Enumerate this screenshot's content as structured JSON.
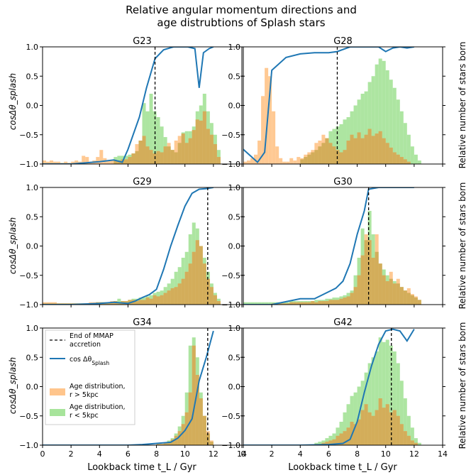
{
  "figure": {
    "title_line1": "Relative angular momentum directions and",
    "title_line2": "age distrubtions of Splash stars",
    "xlabel": "Lookback time t_L / Gyr",
    "ylabel_left": "cosΔθ_splash",
    "ylabel_right": "Relative number of stars born"
  },
  "colors": {
    "line": "#1f77b4",
    "orange": "#ffbb78",
    "green": "#98df8a",
    "overlap": "#c9a64d"
  },
  "legend": {
    "mmap": "End of MMAP accretion",
    "cos": "cos Δθ_Splash",
    "outer": "Age distribution, r > 5kpc",
    "inner": "Age distribution, r < 5kpc"
  },
  "chart_data": [
    {
      "type": "line+histogram",
      "title": "G23",
      "xlim": [
        0,
        14
      ],
      "ylim": [
        -1.0,
        1.0
      ],
      "xticks": [
        0,
        2,
        4,
        6,
        8,
        10,
        12,
        14
      ],
      "yticks": [
        -1.0,
        -0.5,
        0.0,
        0.5,
        1.0
      ],
      "mmap_end": 7.9,
      "cos_x": [
        0,
        2,
        4,
        5,
        5.6,
        6,
        6.8,
        7.3,
        7.9,
        8.5,
        9.2,
        10.2,
        10.7,
        11.0,
        11.3,
        11.7,
        12.0
      ],
      "cos_y": [
        -1.0,
        -1.0,
        -0.96,
        -0.93,
        -0.97,
        -0.75,
        -0.2,
        0.3,
        0.8,
        0.95,
        1.0,
        1.0,
        0.97,
        0.3,
        0.9,
        0.97,
        1.0
      ],
      "hist_outer": [
        0.03,
        0.02,
        0.03,
        0.02,
        0.02,
        0.01,
        0.02,
        0.01,
        0.02,
        0.03,
        0.02,
        0.07,
        0.06,
        0.02,
        0.03,
        0.06,
        0.12,
        0.05,
        0.03,
        0.03,
        0.03,
        0.03,
        0.04,
        0.04,
        0.06,
        0.09,
        0.17,
        0.2,
        0.24,
        0.15,
        0.12,
        0.09,
        0.11,
        0.1,
        0.15,
        0.18,
        0.12,
        0.2,
        0.24,
        0.26,
        0.18,
        0.22,
        0.29,
        0.38,
        0.37,
        0.45,
        0.3,
        0.25,
        0.17,
        0.06,
        0,
        0
      ],
      "hist_inner": [
        0,
        0,
        0,
        0,
        0,
        0,
        0,
        0,
        0,
        0,
        0,
        0,
        0,
        0,
        0,
        0,
        0,
        0,
        0,
        0,
        0.06,
        0.07,
        0.07,
        0.07,
        0.08,
        0.09,
        0.11,
        0.2,
        0.52,
        0.45,
        0.6,
        0.45,
        0.4,
        0.32,
        0.23,
        0.15,
        0.12,
        0.1,
        0.18,
        0.27,
        0.28,
        0.28,
        0.32,
        0.45,
        0.5,
        0.6,
        0.45,
        0.35,
        0.25,
        0.12,
        0,
        0
      ]
    },
    {
      "type": "line+histogram",
      "title": "G28",
      "xlim": [
        0,
        14
      ],
      "ylim": [
        -1.0,
        1.0
      ],
      "xticks": [
        0,
        2,
        4,
        6,
        8,
        10,
        12,
        14
      ],
      "yticks": [
        -1.0,
        -0.5,
        0.0,
        0.5,
        1.0
      ],
      "mmap_end": 6.6,
      "cos_x": [
        0,
        1.0,
        1.5,
        2.0,
        3.0,
        4.0,
        5.0,
        6.0,
        6.6,
        7.5,
        8.5,
        9.5,
        10.0,
        10.5,
        11.0,
        11.5,
        12.0
      ],
      "cos_y": [
        -0.75,
        -0.97,
        -0.8,
        0.6,
        0.82,
        0.88,
        0.9,
        0.9,
        0.92,
        1.0,
        1.0,
        1.0,
        0.92,
        0.98,
        1.0,
        0.98,
        1.0
      ],
      "hist_outer": [
        0.02,
        0.03,
        0.05,
        0.08,
        0.2,
        0.58,
        0.82,
        0.75,
        0.45,
        0.15,
        0.05,
        0.02,
        0.02,
        0.05,
        0.03,
        0.06,
        0.05,
        0.08,
        0.1,
        0.12,
        0.18,
        0.2,
        0.25,
        0.22,
        0.18,
        0.15,
        0.12,
        0.1,
        0.12,
        0.2,
        0.25,
        0.22,
        0.27,
        0.22,
        0.25,
        0.3,
        0.24,
        0.26,
        0.28,
        0.22,
        0.18,
        0.14,
        0.1,
        0.08,
        0.06,
        0.04,
        0.02,
        0,
        0,
        0,
        0,
        0
      ],
      "hist_inner": [
        0,
        0,
        0,
        0,
        0,
        0,
        0,
        0,
        0,
        0,
        0,
        0,
        0,
        0,
        0,
        0,
        0.04,
        0.06,
        0.08,
        0.1,
        0.12,
        0.15,
        0.18,
        0.22,
        0.28,
        0.3,
        0.32,
        0.34,
        0.38,
        0.4,
        0.45,
        0.5,
        0.55,
        0.6,
        0.62,
        0.7,
        0.75,
        0.85,
        0.9,
        0.88,
        0.8,
        0.72,
        0.65,
        0.55,
        0.45,
        0.35,
        0.25,
        0.15,
        0.08,
        0.03,
        0,
        0
      ]
    },
    {
      "type": "line+histogram",
      "title": "G29",
      "xlim": [
        0,
        14
      ],
      "ylim": [
        -1.0,
        1.0
      ],
      "xticks": [
        0,
        2,
        4,
        6,
        8,
        10,
        12,
        14
      ],
      "yticks": [
        -1.0,
        -0.5,
        0.0,
        0.5,
        1.0
      ],
      "mmap_end": 11.6,
      "cos_x": [
        0,
        2,
        4,
        5,
        6,
        6.5,
        7.0,
        7.5,
        8.0,
        8.5,
        9.0,
        9.5,
        10.0,
        10.5,
        11.0,
        11.5,
        12.0
      ],
      "cos_y": [
        -1.0,
        -1.0,
        -0.98,
        -0.96,
        -0.98,
        -0.94,
        -0.88,
        -0.83,
        -0.74,
        -0.4,
        0.0,
        0.35,
        0.68,
        0.9,
        0.97,
        0.98,
        1.0
      ],
      "hist_outer": [
        0.02,
        0.02,
        0.02,
        0.02,
        0.01,
        0.01,
        0.01,
        0.01,
        0.01,
        0.01,
        0.01,
        0.01,
        0.01,
        0.02,
        0.02,
        0.02,
        0.02,
        0.02,
        0.02,
        0.03,
        0.03,
        0.02,
        0.03,
        0.03,
        0.04,
        0.04,
        0.03,
        0.04,
        0.04,
        0.06,
        0.05,
        0.08,
        0.07,
        0.08,
        0.1,
        0.12,
        0.14,
        0.15,
        0.18,
        0.22,
        0.28,
        0.35,
        0.45,
        0.55,
        0.5,
        0.35,
        0.22,
        0.15,
        0.08,
        0.03,
        0,
        0
      ],
      "hist_inner": [
        0.01,
        0.01,
        0.01,
        0.01,
        0.01,
        0.01,
        0.01,
        0.01,
        0.01,
        0.01,
        0.01,
        0.01,
        0.01,
        0.01,
        0.01,
        0.02,
        0.02,
        0.02,
        0.02,
        0.02,
        0.03,
        0.05,
        0.03,
        0.03,
        0.04,
        0.05,
        0.05,
        0.06,
        0.06,
        0.07,
        0.08,
        0.1,
        0.11,
        0.12,
        0.15,
        0.18,
        0.22,
        0.28,
        0.32,
        0.4,
        0.45,
        0.6,
        0.7,
        0.65,
        0.5,
        0.4,
        0.28,
        0.18,
        0.1,
        0.05,
        0,
        0
      ]
    },
    {
      "type": "line+histogram",
      "title": "G30",
      "xlim": [
        0,
        14
      ],
      "ylim": [
        -1.0,
        1.0
      ],
      "xticks": [
        0,
        2,
        4,
        6,
        8,
        10,
        12,
        14
      ],
      "yticks": [
        -1.0,
        -0.5,
        0.0,
        0.5,
        1.0
      ],
      "mmap_end": 8.8,
      "cos_x": [
        0,
        2,
        3,
        4,
        5,
        6,
        6.5,
        7.0,
        7.5,
        8.0,
        8.5,
        8.8,
        9.5,
        10.0,
        11.0,
        12.0
      ],
      "cos_y": [
        -1.0,
        -1.0,
        -0.95,
        -0.9,
        -0.9,
        -0.78,
        -0.72,
        -0.6,
        -0.3,
        0.2,
        0.6,
        0.97,
        1.0,
        1.0,
        1.0,
        1.0
      ],
      "hist_outer": [
        0,
        0,
        0,
        0,
        0,
        0,
        0,
        0,
        0.01,
        0.01,
        0.01,
        0.01,
        0.01,
        0.02,
        0.02,
        0.02,
        0.02,
        0.02,
        0.02,
        0.03,
        0.02,
        0.03,
        0.03,
        0.03,
        0.04,
        0.04,
        0.04,
        0.05,
        0.06,
        0.07,
        0.1,
        0.15,
        0.25,
        0.42,
        0.6,
        0.55,
        0.4,
        0.6,
        0.35,
        0.25,
        0.2,
        0.28,
        0.18,
        0.22,
        0.15,
        0.12,
        0.14,
        0.09,
        0.07,
        0.04,
        0,
        0
      ],
      "hist_inner": [
        0.02,
        0.02,
        0.02,
        0.02,
        0.02,
        0.02,
        0.02,
        0.02,
        0.02,
        0.02,
        0.02,
        0.02,
        0.02,
        0.03,
        0.03,
        0.03,
        0.03,
        0.03,
        0.03,
        0.03,
        0.04,
        0.04,
        0.04,
        0.05,
        0.05,
        0.06,
        0.06,
        0.07,
        0.08,
        0.1,
        0.12,
        0.25,
        0.4,
        0.65,
        0.55,
        0.8,
        0.6,
        0.45,
        0.35,
        0.3,
        0.25,
        0.22,
        0.2,
        0.18,
        0.15,
        0.12,
        0.1,
        0.08,
        0.06,
        0.04,
        0,
        0
      ]
    },
    {
      "type": "line+histogram",
      "title": "G34",
      "xlim": [
        0,
        14
      ],
      "ylim": [
        -1.0,
        1.0
      ],
      "xticks": [
        0,
        2,
        4,
        6,
        8,
        10,
        12,
        14
      ],
      "yticks": [
        -1.0,
        -0.5,
        0.0,
        0.5,
        1.0
      ],
      "mmap_end": 11.6,
      "cos_x": [
        0,
        2,
        4,
        6,
        7,
        8,
        9,
        9.5,
        10.0,
        10.5,
        11.0,
        11.5,
        12.0
      ],
      "cos_y": [
        -1.0,
        -1.0,
        -1.0,
        -1.0,
        -0.99,
        -0.97,
        -0.95,
        -0.88,
        -0.75,
        -0.55,
        0.1,
        0.5,
        0.95
      ],
      "hist_outer": [
        0,
        0,
        0,
        0,
        0,
        0,
        0,
        0,
        0,
        0,
        0,
        0,
        0,
        0,
        0,
        0,
        0,
        0,
        0,
        0,
        0,
        0,
        0,
        0,
        0,
        0,
        0,
        0,
        0,
        0,
        0,
        0,
        0.01,
        0.01,
        0.02,
        0.03,
        0.05,
        0.08,
        0.12,
        0.18,
        0.28,
        0.45,
        0.85,
        0.6,
        0.4,
        0.25,
        0.12,
        0.04,
        0,
        0,
        0,
        0
      ],
      "hist_inner": [
        0,
        0,
        0,
        0,
        0,
        0,
        0,
        0,
        0,
        0,
        0,
        0,
        0,
        0,
        0,
        0,
        0,
        0,
        0,
        0,
        0,
        0,
        0,
        0,
        0,
        0,
        0,
        0,
        0,
        0,
        0,
        0,
        0.01,
        0.01,
        0.02,
        0.04,
        0.06,
        0.1,
        0.16,
        0.25,
        0.45,
        0.85,
        0.92,
        0.75,
        0.45,
        0.25,
        0.1,
        0.03,
        0,
        0,
        0,
        0
      ]
    },
    {
      "type": "line+histogram",
      "title": "G42",
      "xlim": [
        0,
        14
      ],
      "ylim": [
        -1.0,
        1.0
      ],
      "xticks": [
        0,
        2,
        4,
        6,
        8,
        10,
        12,
        14
      ],
      "yticks": [
        -1.0,
        -0.5,
        0.0,
        0.5,
        1.0
      ],
      "mmap_end": 10.4,
      "cos_x": [
        0,
        2,
        4,
        6,
        7,
        7.5,
        8.0,
        8.5,
        9.0,
        9.5,
        10.0,
        10.5,
        11.0,
        11.5,
        12.0
      ],
      "cos_y": [
        -1.0,
        -1.0,
        -1.0,
        -0.99,
        -0.97,
        -0.9,
        -0.6,
        -0.1,
        0.35,
        0.72,
        0.95,
        0.98,
        0.95,
        0.78,
        0.98
      ],
      "hist_outer": [
        0,
        0,
        0,
        0,
        0,
        0,
        0,
        0,
        0,
        0,
        0,
        0,
        0,
        0,
        0,
        0,
        0,
        0,
        0,
        0,
        0.01,
        0.01,
        0.02,
        0.03,
        0.04,
        0.05,
        0.08,
        0.1,
        0.12,
        0.15,
        0.2,
        0.18,
        0.22,
        0.3,
        0.35,
        0.28,
        0.25,
        0.3,
        0.4,
        0.32,
        0.35,
        0.28,
        0.3,
        0.25,
        0.18,
        0.12,
        0.08,
        0.04,
        0.02,
        0,
        0,
        0
      ],
      "hist_inner": [
        0,
        0,
        0,
        0,
        0,
        0,
        0,
        0,
        0,
        0,
        0,
        0,
        0,
        0,
        0,
        0,
        0,
        0,
        0,
        0,
        0.02,
        0.03,
        0.04,
        0.06,
        0.08,
        0.1,
        0.15,
        0.2,
        0.28,
        0.35,
        0.42,
        0.45,
        0.5,
        0.55,
        0.62,
        0.7,
        0.75,
        0.8,
        0.92,
        0.88,
        0.9,
        0.85,
        0.8,
        0.7,
        0.55,
        0.4,
        0.25,
        0.15,
        0.06,
        0.02,
        0,
        0
      ]
    }
  ]
}
